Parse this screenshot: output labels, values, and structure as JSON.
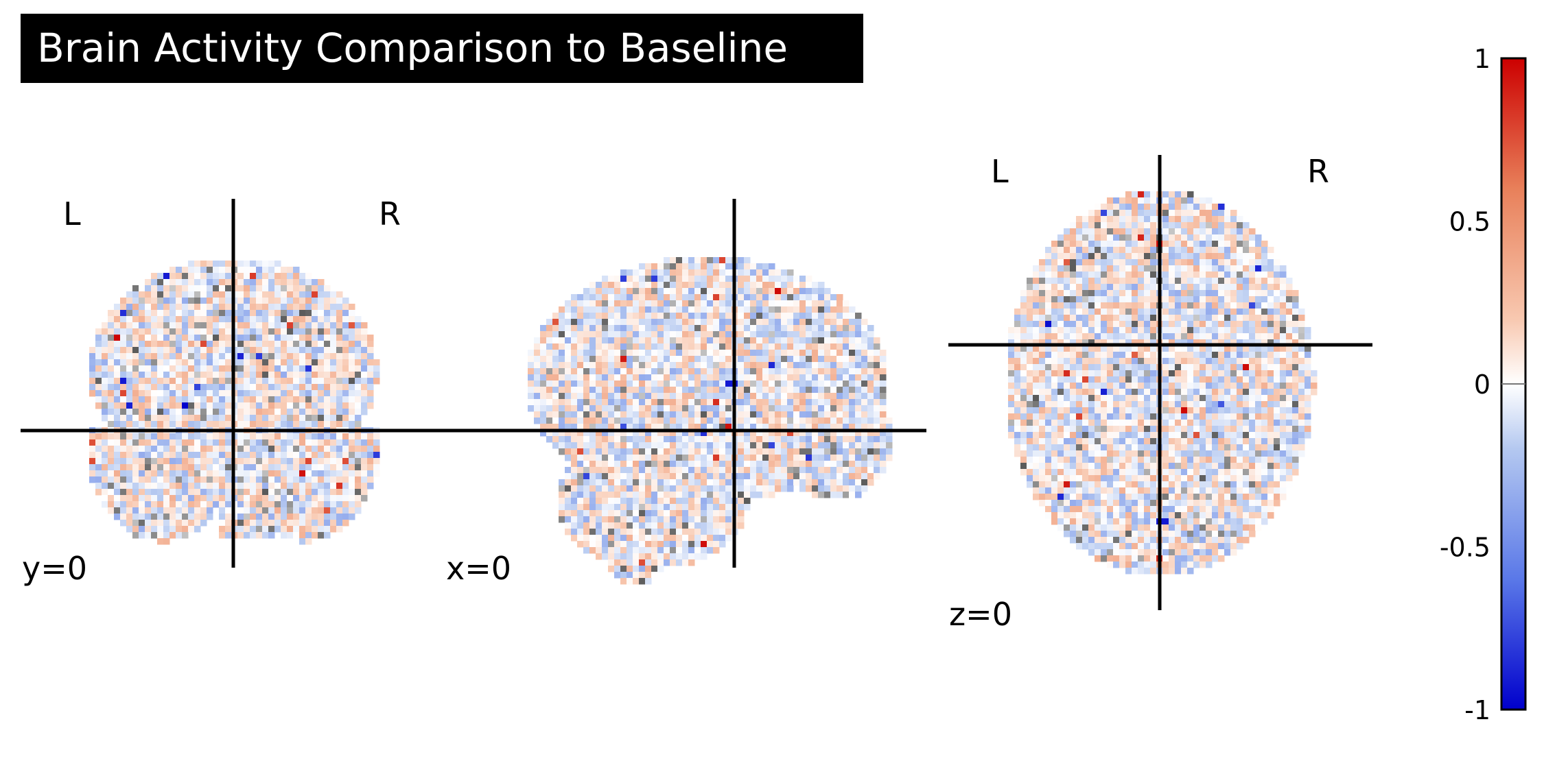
{
  "title": "Brain Activity Comparison to Baseline",
  "views": [
    {
      "id": "coronal",
      "coord_label": "y=0",
      "left_label": "L",
      "right_label": "R"
    },
    {
      "id": "sagittal",
      "coord_label": "x=0"
    },
    {
      "id": "axial",
      "coord_label": "z=0",
      "left_label": "L",
      "right_label": "R"
    }
  ],
  "colorbar": {
    "ticks": [
      "1",
      "0.5",
      "0",
      "-0.5",
      "-1"
    ],
    "tick_values": [
      1,
      0.5,
      0,
      -0.5,
      -1
    ],
    "range": [
      -1,
      1
    ],
    "colormap": [
      "#0000cc",
      "#5a78e8",
      "#b4c8f0",
      "#ffffff",
      "#f8c8b0",
      "#e8805a",
      "#cc0000"
    ]
  }
}
